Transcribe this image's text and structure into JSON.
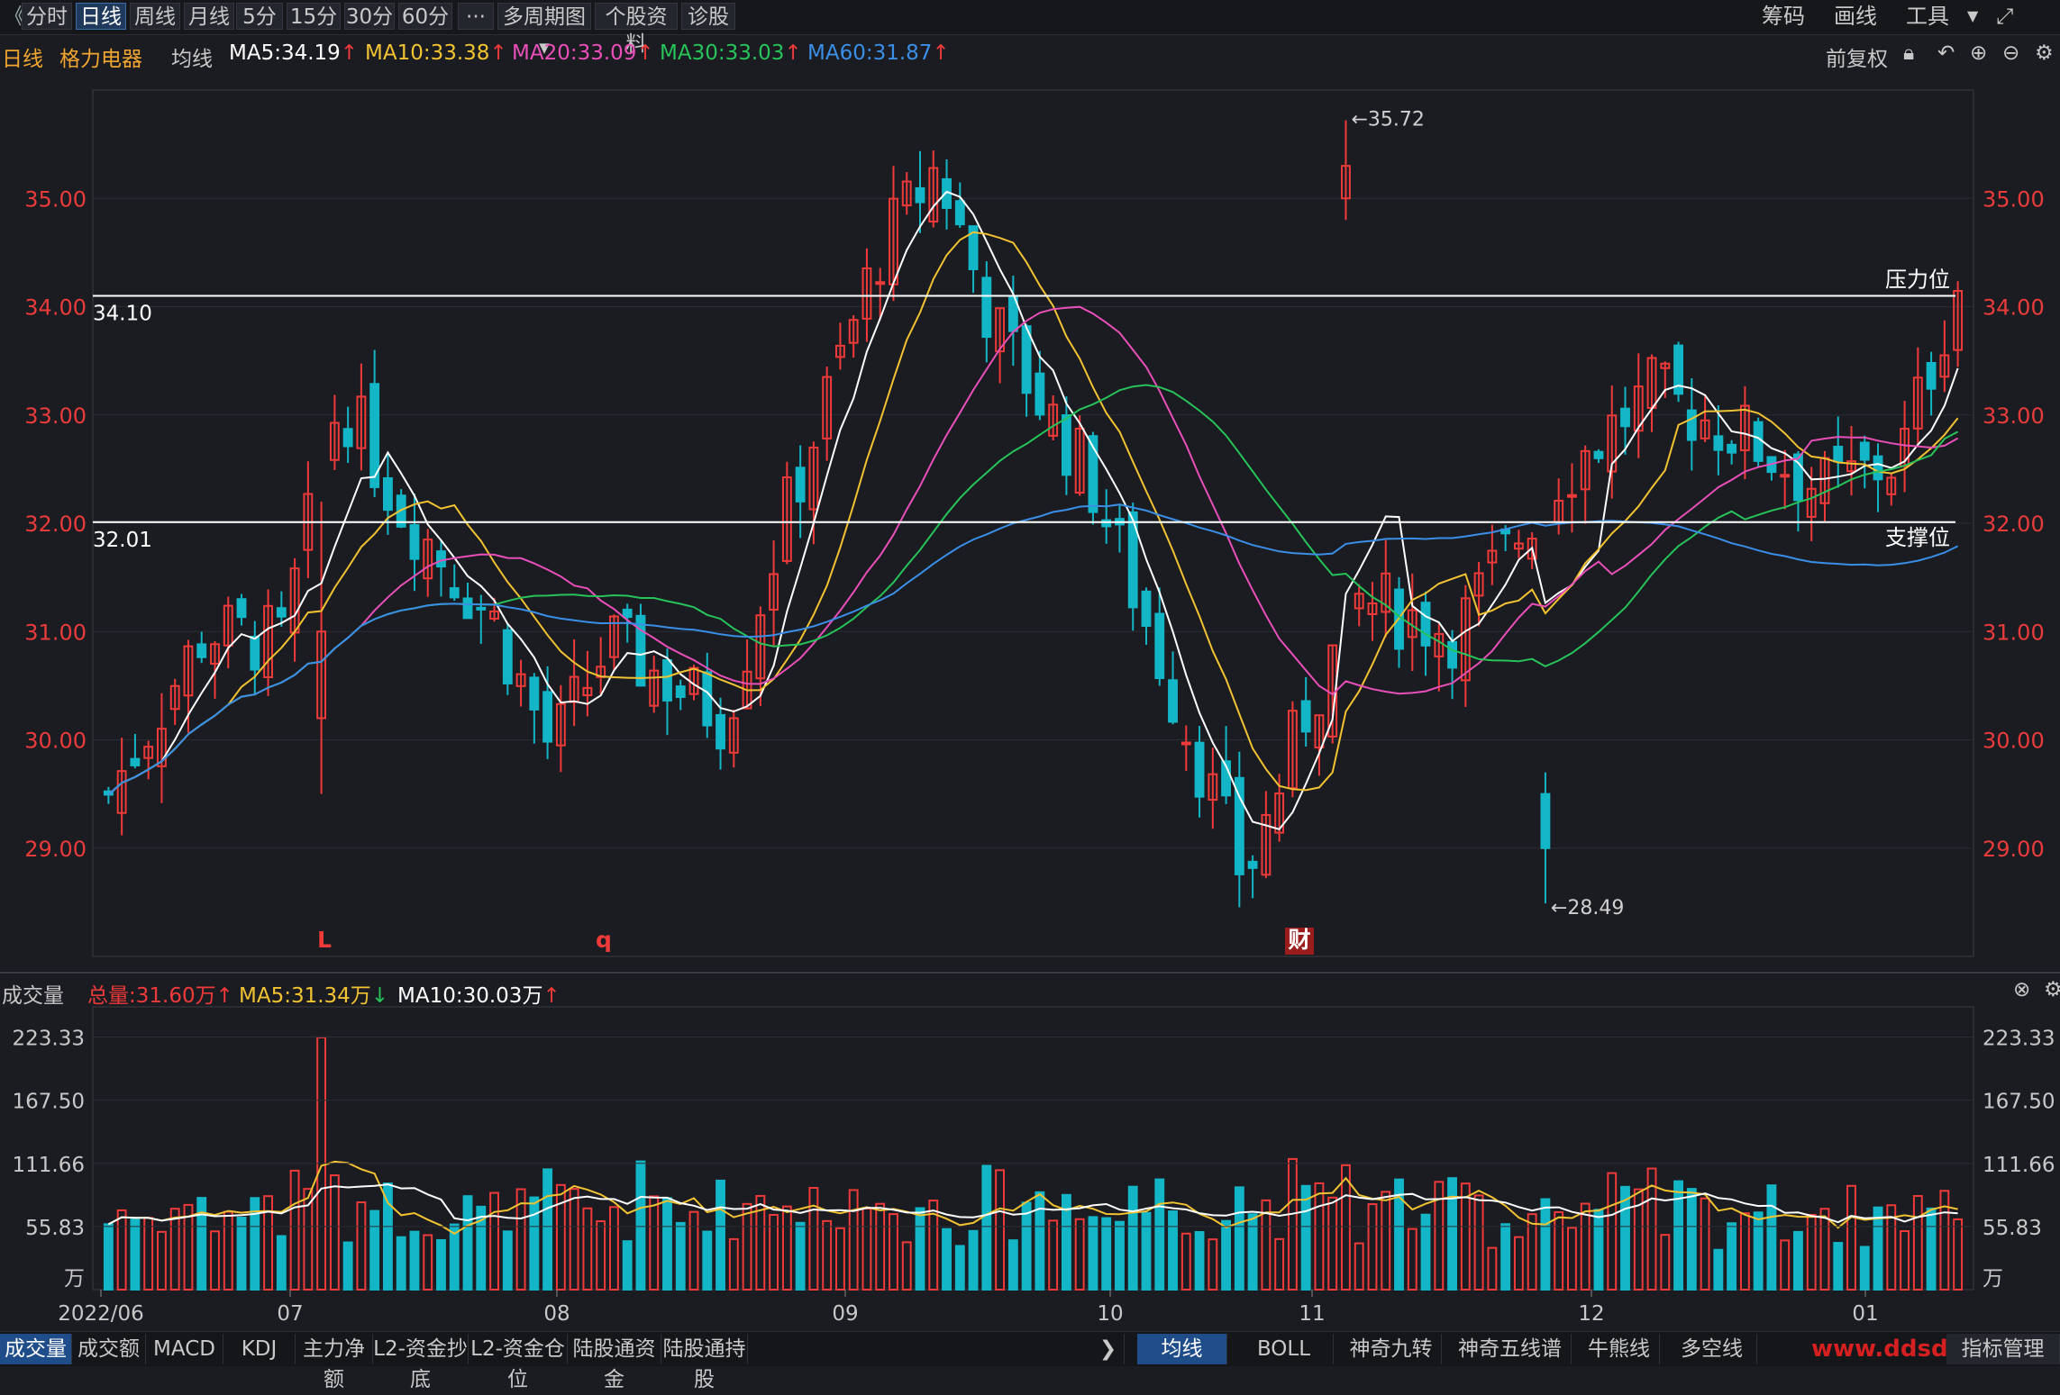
{
  "toolbar": {
    "back_glyph": "《",
    "periods": [
      "分时",
      "日线",
      "周线",
      "月线",
      "5分",
      "15分",
      "30分",
      "60分",
      "···",
      "多周期图",
      "个股资料",
      "诊股"
    ],
    "active_period": "日线",
    "right": [
      "筹码",
      "画线",
      "工具"
    ]
  },
  "info": {
    "period": "日线",
    "stock": "格力电器",
    "avg_label": "均线",
    "ma5": "MA5:34.19",
    "ma10": "MA10:33.38",
    "ma20": "MA20:33.09",
    "ma30": "MA30:33.03",
    "ma60": "MA60:31.87",
    "adjust": "前复权"
  },
  "volume_info": {
    "title": "成交量",
    "total": "总量:31.60万",
    "ma5": "MA5:31.34万",
    "ma10": "MA10:30.03万"
  },
  "colors": {
    "up": "#ef3a3a",
    "down": "#13b6c7",
    "ma5": "#ffffff",
    "ma10": "#f1c232",
    "ma20": "#e84fb8",
    "ma30": "#27c25a",
    "ma60": "#3a8ee6",
    "price_axis": "#e83b3b"
  },
  "bottom_tabs_left": [
    "成交量",
    "成交额",
    "MACD",
    "KDJ",
    "主力净额",
    "L2-资金抄底",
    "L2-资金仓位",
    "陆股通资金",
    "陆股通持股"
  ],
  "bottom_tabs_right": [
    "均线",
    "BOLL",
    "神奇九转",
    "神奇五线谱",
    "牛熊线",
    "多空线"
  ],
  "bottom_right_button": "指标管理",
  "watermark": "www.ddsdj.net",
  "chart_data": {
    "type": "candlestick",
    "y_ticks": [
      "35.00",
      "34.00",
      "33.00",
      "32.00",
      "31.00",
      "30.00",
      "29.00"
    ],
    "ylim": [
      28.0,
      36.0
    ],
    "x_ticks": [
      "2022/06",
      "07",
      "08",
      "09",
      "10",
      "11",
      "12",
      "01"
    ],
    "hlines": [
      {
        "value": 34.1,
        "label": "34.10",
        "tag": "压力位"
      },
      {
        "value": 32.01,
        "label": "32.01",
        "tag": "支撑位"
      }
    ],
    "annotations": [
      {
        "text": "←35.72",
        "value": 35.72
      },
      {
        "text": "←28.49",
        "value": 28.49
      }
    ],
    "markers": [
      "L",
      "q",
      "财"
    ],
    "volume_ticks": [
      "223.33",
      "167.50",
      "111.66",
      "55.83",
      "万"
    ],
    "volume_ylim": [
      0,
      250
    ]
  }
}
